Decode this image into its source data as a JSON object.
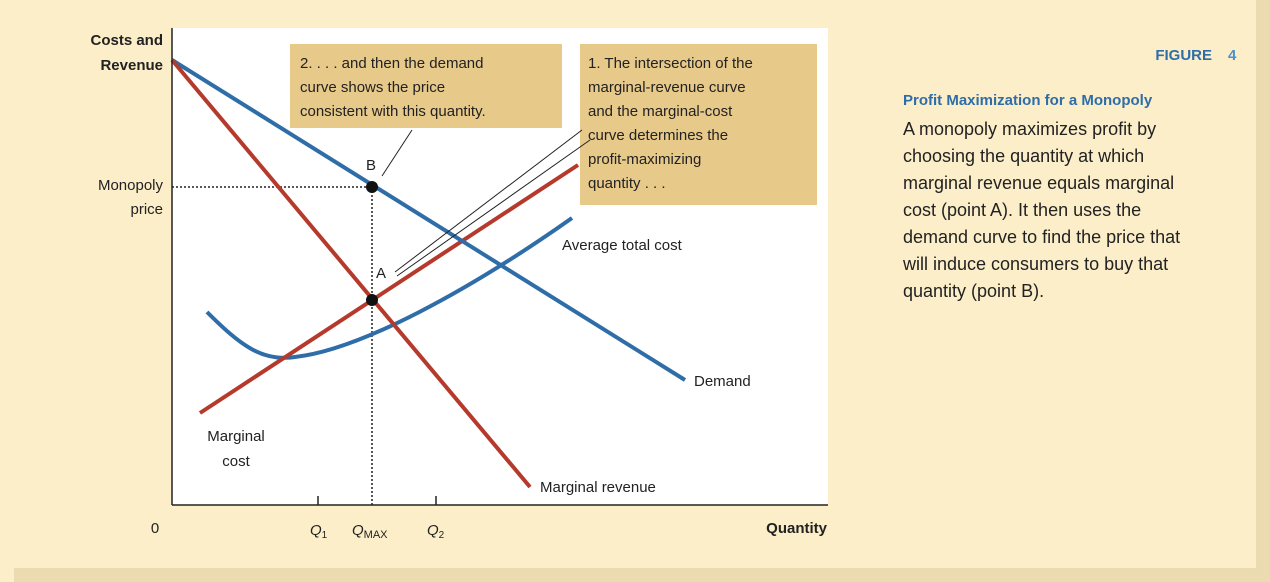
{
  "axes": {
    "y_label": [
      "Costs and",
      "Revenue"
    ],
    "x_label": "Quantity",
    "origin": "0",
    "monopoly_price": [
      "Monopoly",
      "price"
    ],
    "x_ticks": [
      {
        "letter": "Q",
        "sub": "1"
      },
      {
        "letter": "Q",
        "sub": "MAX"
      },
      {
        "letter": "Q",
        "sub": "2"
      }
    ]
  },
  "annotations": [
    {
      "lines": [
        "2. . . . and then the demand",
        "curve shows the price",
        "consistent with this quantity."
      ]
    },
    {
      "lines": [
        "1. The intersection of the",
        "marginal-revenue curve",
        "and the marginal-cost",
        "curve determines the",
        "profit-maximizing",
        "quantity . . ."
      ]
    }
  ],
  "points": {
    "a": "A",
    "b": "B"
  },
  "curves": {
    "demand": "Demand",
    "marginal_revenue": "Marginal revenue",
    "average_total_cost": "Average total cost",
    "marginal_cost": [
      "Marginal",
      "cost"
    ]
  },
  "caption": {
    "figure_word": "FIGURE",
    "figure_number": "4",
    "title": "Profit Maximization for a Monopoly",
    "body": [
      "A monopoly maximizes profit by",
      "choosing the quantity at which",
      "marginal revenue equals marginal",
      "cost (point A). It then uses the",
      "demand curve to find the price that",
      "will induce consumers to buy that",
      "quantity (point B)."
    ]
  }
}
